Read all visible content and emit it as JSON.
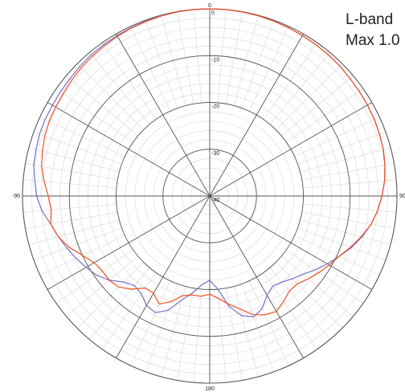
{
  "chart_data": {
    "type": "polar-line",
    "title_lines": [
      "L-band",
      "Max 1.0"
    ],
    "angle_ticks": [
      {
        "deg": 0,
        "label": "0"
      },
      {
        "deg": -90,
        "label": "-90"
      },
      {
        "deg": 90,
        "label": "90"
      },
      {
        "deg": 180,
        "label": "180"
      }
    ],
    "radial_ticks": [
      {
        "value": 0,
        "label": "0"
      },
      {
        "value": -10,
        "label": "-10"
      },
      {
        "value": -20,
        "label": "-20"
      },
      {
        "value": -30,
        "label": "-30"
      },
      {
        "value": -40,
        "label": "-40"
      }
    ],
    "r_range": [
      -40,
      0
    ],
    "spoke_step_deg": 30,
    "fine_spoke_step_deg": 5,
    "fine_ring_step": 2,
    "colors": {
      "series_blue": "#7070c8",
      "series_red": "#f05020",
      "grid_major": "#555555",
      "grid_minor": "#d6d6d6"
    },
    "series": [
      {
        "color": "#7070c8",
        "points": [
          [
            -180,
            -22
          ],
          [
            -175,
            -21
          ],
          [
            -170,
            -19
          ],
          [
            -165,
            -17
          ],
          [
            -160,
            -14
          ],
          [
            -155,
            -12.5
          ],
          [
            -150,
            -13
          ],
          [
            -145,
            -14.5
          ],
          [
            -140,
            -15
          ],
          [
            -135,
            -14
          ],
          [
            -130,
            -12
          ],
          [
            -125,
            -10.5
          ],
          [
            -120,
            -9.5
          ],
          [
            -115,
            -8.5
          ],
          [
            -110,
            -7.5
          ],
          [
            -105,
            -6.5
          ],
          [
            -100,
            -5.5
          ],
          [
            -95,
            -4
          ],
          [
            -90,
            -3
          ],
          [
            -85,
            -2.5
          ],
          [
            -80,
            -1.8
          ],
          [
            -75,
            -1.6
          ],
          [
            -70,
            -1.3
          ],
          [
            -65,
            -1.2
          ],
          [
            -60,
            -1.2
          ],
          [
            -55,
            -1.1
          ],
          [
            -50,
            -1
          ],
          [
            -45,
            -0.8
          ],
          [
            -40,
            -0.6
          ],
          [
            -35,
            -0.5
          ],
          [
            -30,
            -0.4
          ],
          [
            -25,
            -0.3
          ],
          [
            -20,
            -0.2
          ],
          [
            -15,
            -0.1
          ],
          [
            -10,
            -0.05
          ],
          [
            -5,
            0
          ],
          [
            0,
            0
          ],
          [
            5,
            0
          ],
          [
            10,
            -0.05
          ],
          [
            15,
            -0.1
          ],
          [
            20,
            -0.2
          ],
          [
            25,
            -0.3
          ],
          [
            30,
            -0.4
          ],
          [
            35,
            -0.5
          ],
          [
            40,
            -0.6
          ],
          [
            45,
            -0.7
          ],
          [
            50,
            -0.9
          ],
          [
            55,
            -1
          ],
          [
            60,
            -1.1
          ],
          [
            65,
            -1.2
          ],
          [
            70,
            -1.4
          ],
          [
            75,
            -1.6
          ],
          [
            80,
            -2
          ],
          [
            85,
            -2.5
          ],
          [
            90,
            -3.2
          ],
          [
            95,
            -4
          ],
          [
            100,
            -5
          ],
          [
            105,
            -6.3
          ],
          [
            110,
            -7.8
          ],
          [
            115,
            -9.5
          ],
          [
            120,
            -11
          ],
          [
            125,
            -12.5
          ],
          [
            130,
            -14
          ],
          [
            135,
            -15
          ],
          [
            140,
            -16
          ],
          [
            145,
            -16.5
          ],
          [
            150,
            -15.5
          ],
          [
            155,
            -13.5
          ],
          [
            160,
            -12.5
          ],
          [
            165,
            -13.5
          ],
          [
            170,
            -16
          ],
          [
            175,
            -20
          ],
          [
            180,
            -22
          ]
        ]
      },
      {
        "color": "#f05020",
        "points": [
          [
            -180,
            -19
          ],
          [
            -175,
            -18.5
          ],
          [
            -170,
            -18.5
          ],
          [
            -165,
            -18
          ],
          [
            -160,
            -16
          ],
          [
            -155,
            -14.5
          ],
          [
            -150,
            -16
          ],
          [
            -145,
            -16
          ],
          [
            -140,
            -14
          ],
          [
            -135,
            -12.5
          ],
          [
            -130,
            -12
          ],
          [
            -125,
            -12
          ],
          [
            -120,
            -11.5
          ],
          [
            -115,
            -10
          ],
          [
            -110,
            -8
          ],
          [
            -105,
            -6.5
          ],
          [
            -100,
            -5.5
          ],
          [
            -95,
            -6
          ],
          [
            -90,
            -5.5
          ],
          [
            -85,
            -4.5
          ],
          [
            -80,
            -3.5
          ],
          [
            -75,
            -3
          ],
          [
            -70,
            -2.5
          ],
          [
            -65,
            -2.2
          ],
          [
            -60,
            -2
          ],
          [
            -55,
            -1.8
          ],
          [
            -50,
            -1.5
          ],
          [
            -45,
            -1.2
          ],
          [
            -40,
            -1
          ],
          [
            -35,
            -0.8
          ],
          [
            -30,
            -0.6
          ],
          [
            -25,
            -0.4
          ],
          [
            -20,
            -0.3
          ],
          [
            -15,
            -0.15
          ],
          [
            -10,
            -0.05
          ],
          [
            -5,
            0
          ],
          [
            0,
            0
          ],
          [
            5,
            0
          ],
          [
            10,
            -0.05
          ],
          [
            15,
            -0.1
          ],
          [
            20,
            -0.2
          ],
          [
            25,
            -0.3
          ],
          [
            30,
            -0.4
          ],
          [
            35,
            -0.5
          ],
          [
            40,
            -0.6
          ],
          [
            45,
            -0.7
          ],
          [
            50,
            -0.9
          ],
          [
            55,
            -1
          ],
          [
            60,
            -1.1
          ],
          [
            65,
            -1.2
          ],
          [
            70,
            -1.4
          ],
          [
            75,
            -1.6
          ],
          [
            80,
            -2
          ],
          [
            85,
            -2.5
          ],
          [
            90,
            -3.2
          ],
          [
            95,
            -4
          ],
          [
            100,
            -5
          ],
          [
            105,
            -6.5
          ],
          [
            110,
            -8
          ],
          [
            115,
            -9.5
          ],
          [
            120,
            -10.5
          ],
          [
            125,
            -11.5
          ],
          [
            130,
            -12.5
          ],
          [
            135,
            -13.5
          ],
          [
            140,
            -13.5
          ],
          [
            145,
            -12.5
          ],
          [
            150,
            -11.5
          ],
          [
            155,
            -12
          ],
          [
            160,
            -13
          ],
          [
            165,
            -15
          ],
          [
            170,
            -16.5
          ],
          [
            175,
            -18
          ],
          [
            180,
            -19
          ]
        ]
      }
    ]
  }
}
